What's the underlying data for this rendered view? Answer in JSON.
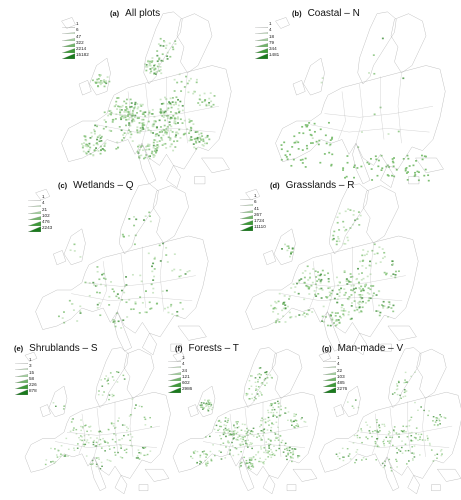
{
  "colors": {
    "outline": "#a8a8a8",
    "legend_shades": [
      "#f0f5ef",
      "#cfe6cc",
      "#a4d09f",
      "#72b56b",
      "#3f9a3a",
      "#1a7a1d"
    ],
    "dot_light": "#bfe0b8",
    "dot_mid": "#7fbf74",
    "dot_dark": "#3f8f3a"
  },
  "panels": [
    {
      "letter": "(a)",
      "name": "All plots",
      "legend": [
        "1",
        "6",
        "47",
        "322",
        "2214",
        "15182"
      ],
      "density": 1.0
    },
    {
      "letter": "(b)",
      "name": "Coastal – N",
      "legend": [
        "1",
        "4",
        "18",
        "79",
        "344",
        "1481"
      ],
      "density": 0.06
    },
    {
      "letter": "(c)",
      "name": "Wetlands – Q",
      "legend": [
        "1",
        "4",
        "21",
        "102",
        "476",
        "2243"
      ],
      "density": 0.35
    },
    {
      "letter": "(d)",
      "name": "Grasslands – R",
      "legend": [
        "1",
        "6",
        "41",
        "267",
        "1724",
        "11110"
      ],
      "density": 0.75
    },
    {
      "letter": "(e)",
      "name": "Shrublands – S",
      "legend": [
        "1",
        "3",
        "15",
        "58",
        "226",
        "878"
      ],
      "density": 0.45
    },
    {
      "letter": "(f)",
      "name": "Forests – T",
      "legend": [
        "1",
        "4",
        "24",
        "121",
        "602",
        "2986"
      ],
      "density": 0.85
    },
    {
      "letter": "(g)",
      "name": "Man-made – V",
      "legend": [
        "1",
        "4",
        "22",
        "103",
        "485",
        "2276"
      ],
      "density": 0.5
    }
  ]
}
